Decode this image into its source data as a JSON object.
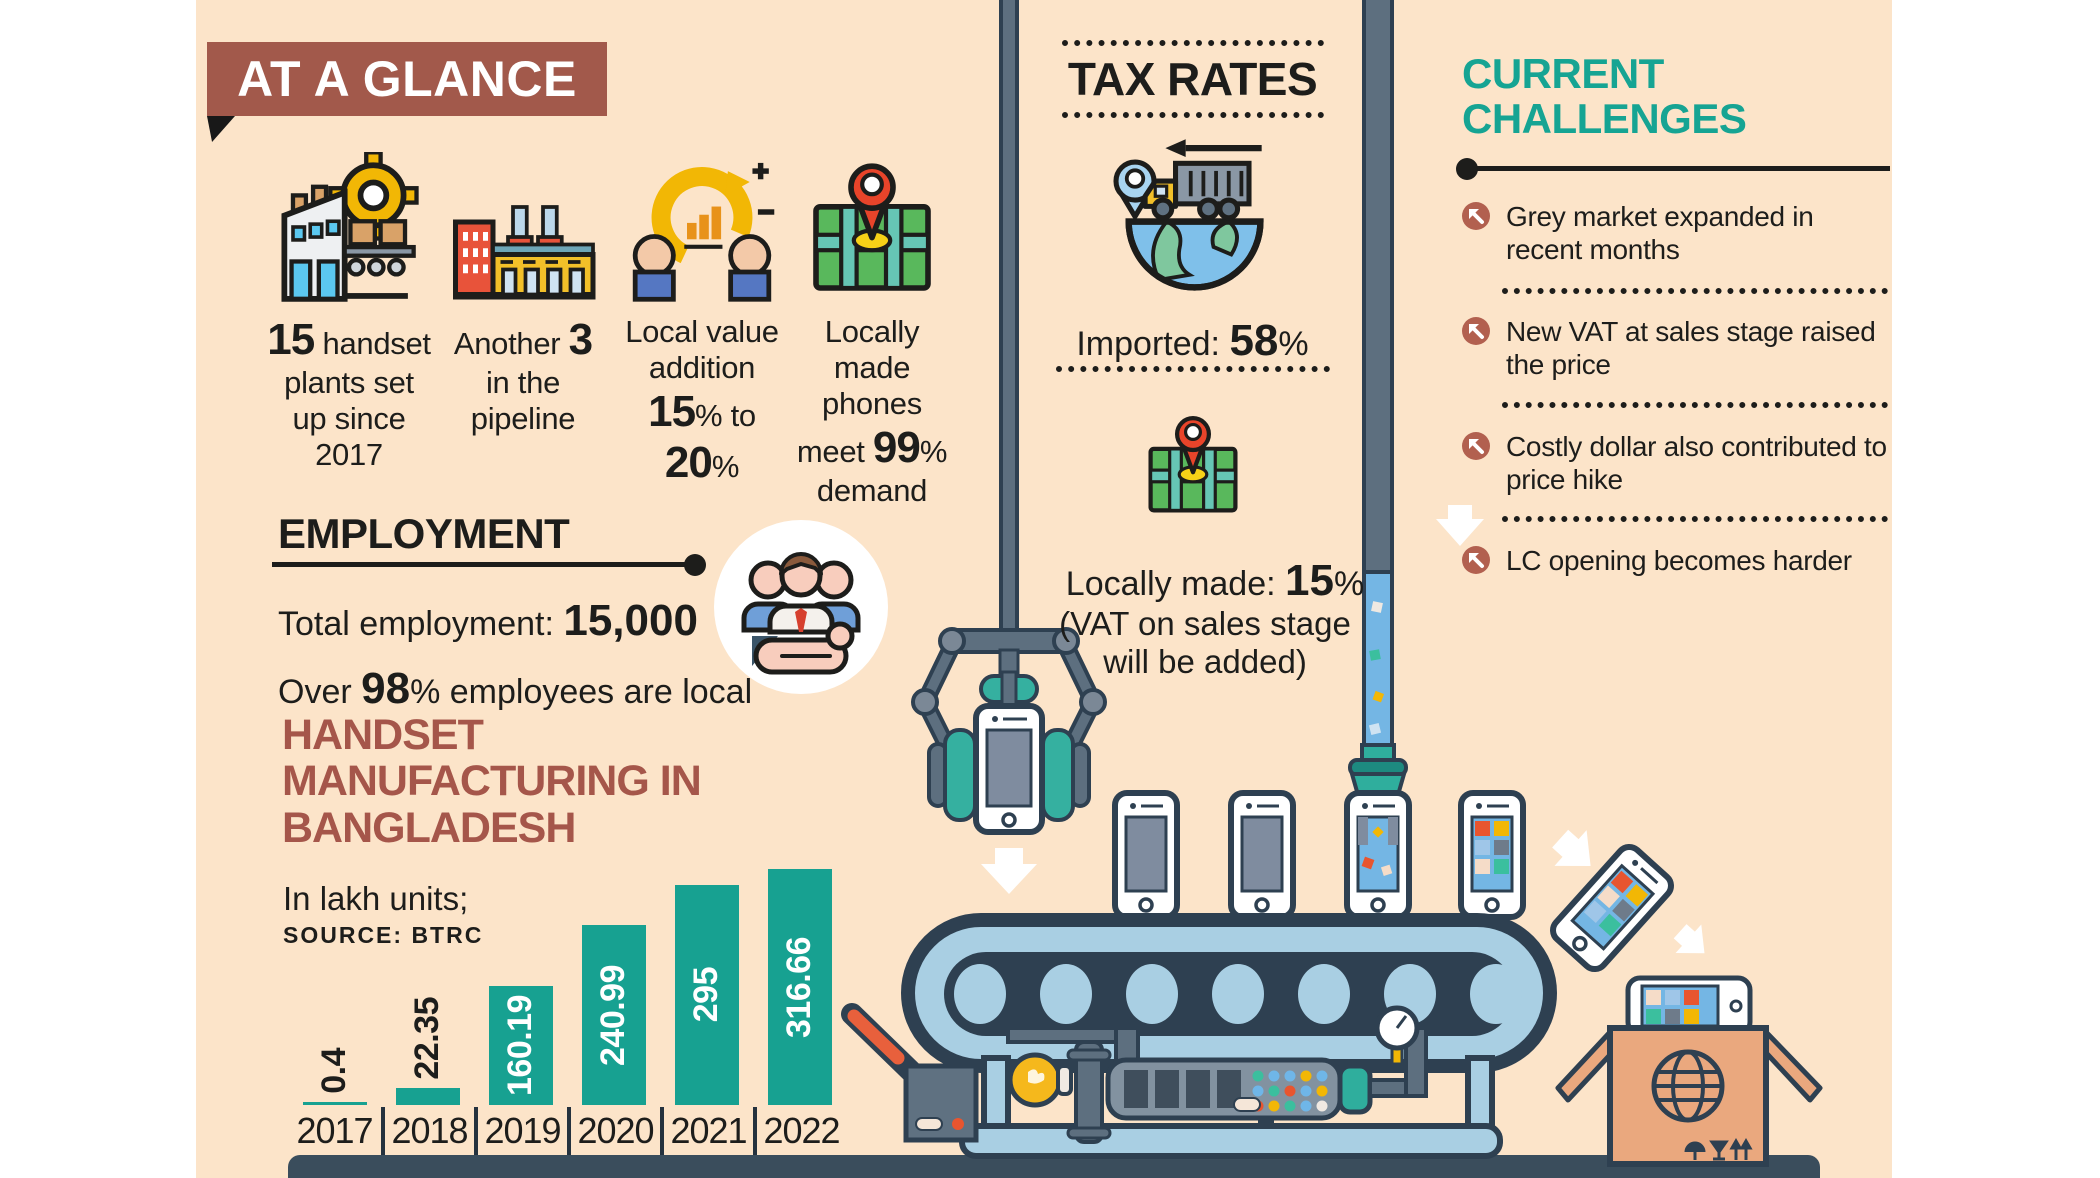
{
  "colors": {
    "background": "#ffffff",
    "panel": "#fce4c9",
    "banner": "#a2594b",
    "accent_brown": "#a5564a",
    "accent_teal": "#16a493",
    "bar_teal": "#17a191",
    "text_dark": "#1d1d1b",
    "outline_navy": "#2e4051",
    "bullet_brown": "#b2604f",
    "floor": "#3a4d5c"
  },
  "icons": [
    "factory-gear-icon",
    "factory-chimneys-icon",
    "value-addition-icon",
    "map-pin-icon",
    "globe-truck-icon",
    "people-in-hand-icon",
    "challenge-arrow-icon",
    "robotic-claw-icon",
    "conveyor-belt-icon",
    "shipping-box-globe-icon"
  ],
  "at_a_glance": {
    "title": "AT A GLANCE",
    "stats": [
      {
        "big": "15",
        "rest": " handset plants set up since 2017"
      },
      {
        "pre": "Another ",
        "big": "3",
        "rest": " in the pipeline"
      },
      {
        "pre": "Local value addition ",
        "big1": "15",
        "mid": "% to ",
        "big2": "20",
        "post": "%"
      },
      {
        "pre": "Locally made phones meet ",
        "big": "99",
        "post": "% demand"
      }
    ]
  },
  "employment": {
    "title": "EMPLOYMENT",
    "total_pre": "Total employment: ",
    "total_big": "15,000",
    "local_pre": "Over ",
    "local_big": "98",
    "local_post": "% employees are local"
  },
  "tax_rates": {
    "title": "TAX RATES",
    "imported_pre": "Imported: ",
    "imported_big": "58",
    "imported_post": "%",
    "local_pre": "Locally made: ",
    "local_big": "15",
    "local_post": "%",
    "note_line1": "(VAT on sales stage",
    "note_line2": "will be added)"
  },
  "challenges": {
    "title_line1": "CURRENT",
    "title_line2": "CHALLENGES",
    "items": [
      "Grey market expanded in recent months",
      "New VAT at sales stage raised the price",
      "Costly dollar also contributed to price hike",
      "LC opening becomes harder"
    ]
  },
  "chart_data": {
    "type": "bar",
    "title": "HANDSET MANUFACTURING IN BANGLADESH",
    "unit_note": "In lakh units;",
    "source": "SOURCE: BTRC",
    "categories": [
      "2017",
      "2018",
      "2019",
      "2020",
      "2021",
      "2022"
    ],
    "values": [
      0.4,
      22.35,
      160.19,
      240.99,
      295,
      316.66
    ],
    "ylim": [
      0,
      330
    ],
    "grid": false,
    "legend": false,
    "bar_color": "#17a191",
    "inside_label_color": "#ffffff",
    "outside_label_color": "#1d1d1b"
  }
}
